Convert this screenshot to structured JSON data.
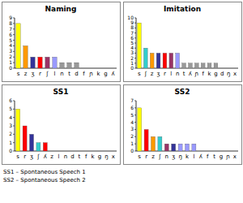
{
  "chart_data": [
    {
      "type": "bar",
      "title": "Naming",
      "categories": [
        "s",
        "z",
        "ʒ",
        "r",
        "ʃ",
        "l",
        "n",
        "t",
        "d",
        "f",
        "ɲ",
        "k",
        "g",
        "ʎ"
      ],
      "values": [
        8,
        4,
        2,
        2,
        2,
        2,
        1,
        1,
        1,
        0,
        0,
        0,
        0,
        0
      ],
      "colors": [
        "#ffff00",
        "#ff9900",
        "#333399",
        "#ff0000",
        "#993366",
        "#9999ff",
        "#999999",
        "#999999",
        "#999999",
        "#999999",
        "#999999",
        "#999999",
        "#999999",
        "#999999"
      ],
      "ylim": [
        0,
        9
      ],
      "yticks": [
        0,
        1,
        2,
        3,
        4,
        5,
        6,
        7,
        8,
        9
      ],
      "grid": false
    },
    {
      "type": "bar",
      "title": "Imitation",
      "categories": [
        "s",
        "ʃ",
        "z",
        "ʒ",
        "r",
        "l",
        "n",
        "t",
        "ʎ",
        "ɲ",
        "f",
        "k",
        "g",
        "d",
        "ŋ",
        "x"
      ],
      "values": [
        9,
        4,
        3,
        3,
        3,
        3,
        3,
        1,
        1,
        1,
        1,
        1,
        1,
        0,
        0,
        0
      ],
      "colors": [
        "#ffff00",
        "#33cccc",
        "#ff9900",
        "#333399",
        "#ff0000",
        "#993366",
        "#9999ff",
        "#999999",
        "#999999",
        "#999999",
        "#999999",
        "#999999",
        "#999999",
        "#999999",
        "#999999",
        "#999999"
      ],
      "ylim": [
        0,
        10
      ],
      "yticks": [
        0,
        1,
        2,
        3,
        4,
        5,
        6,
        7,
        8,
        9,
        10
      ],
      "grid": false
    },
    {
      "type": "bar",
      "title": "SS1",
      "categories": [
        "s",
        "r",
        "ʒ",
        "ʃ",
        "ʎ",
        "z",
        "l",
        "n",
        "d",
        "t",
        "f",
        "k",
        "g",
        "ŋ",
        "x"
      ],
      "values": [
        5,
        3,
        2,
        1,
        1,
        0,
        0,
        0,
        0,
        0,
        0,
        0,
        0,
        0,
        0
      ],
      "colors": [
        "#ffff00",
        "#ff0000",
        "#333399",
        "#33cccc",
        "#ff0000",
        "#ff9900",
        "#9999ff",
        "#993366",
        "#999999",
        "#999999",
        "#999999",
        "#999999",
        "#999999",
        "#999999",
        "#999999"
      ],
      "ylim": [
        0,
        6
      ],
      "yticks": [
        0,
        1,
        2,
        3,
        4,
        5,
        6
      ],
      "grid": false
    },
    {
      "type": "bar",
      "title": "SS2",
      "categories": [
        "s",
        "r",
        "z",
        "ʃ",
        "n",
        "ʒ",
        "ŋ",
        "k",
        "l",
        "ʎ",
        "f",
        "t",
        "g",
        "ɲ",
        "x"
      ],
      "values": [
        6,
        3,
        2,
        2,
        1,
        1,
        1,
        1,
        1,
        0,
        0,
        0,
        0,
        0,
        0
      ],
      "colors": [
        "#ffff00",
        "#ff0000",
        "#ff9900",
        "#33cccc",
        "#993366",
        "#333399",
        "#9999ff",
        "#9999ff",
        "#9999ff",
        "#999999",
        "#999999",
        "#999999",
        "#999999",
        "#999999",
        "#999999"
      ],
      "ylim": [
        0,
        7
      ],
      "yticks": [
        0,
        1,
        2,
        3,
        4,
        5,
        6,
        7
      ],
      "grid": false
    }
  ],
  "notes": [
    "SS1 – Spontaneous Speech 1",
    "SS2 – Spontaneous Speech 2"
  ]
}
